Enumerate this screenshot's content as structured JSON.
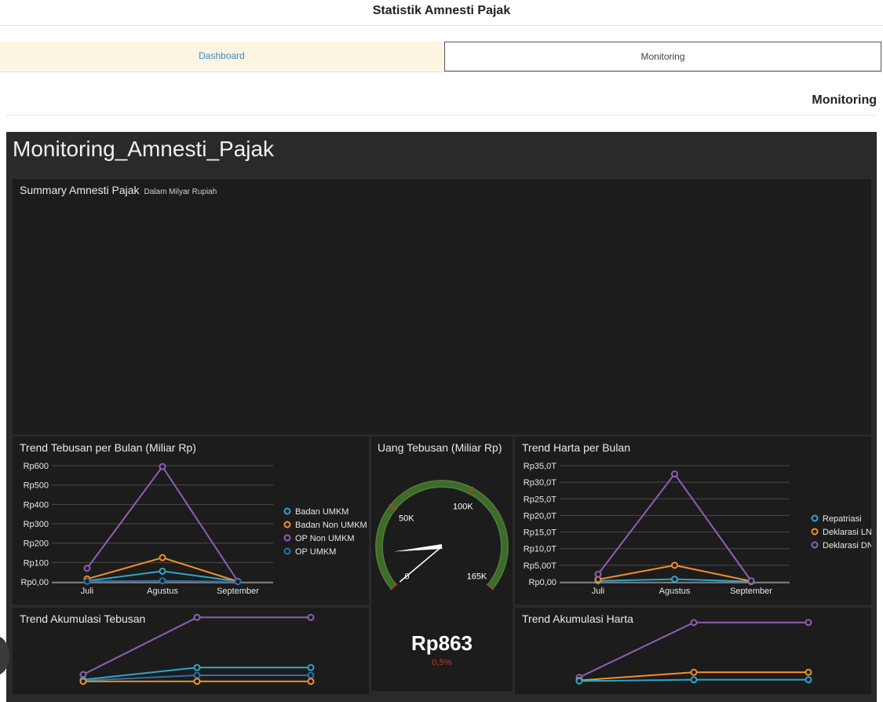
{
  "app": {
    "title": "Statistik Amnesti Pajak"
  },
  "tabs": [
    {
      "label": "Dashboard"
    },
    {
      "label": "Monitoring"
    }
  ],
  "section": {
    "title": "Monitoring"
  },
  "dashboard": {
    "title": "Monitoring_Amnesti_Pajak",
    "summary": {
      "title": "Summary Amnesti Pajak",
      "subtitle": "Dalam Milyar Rupiah"
    },
    "gauge": {
      "title": "Uang Tebusan (Miliar Rp)",
      "value_text": "Rp863",
      "pct_text": "0,5%",
      "value": 863,
      "min": 0,
      "max": 165000,
      "tick_labels": [
        "0",
        "50K",
        "100K",
        "165K"
      ],
      "tick_values": [
        0,
        50000,
        100000,
        165000
      ]
    },
    "colors": {
      "teal": "#2fa5c9",
      "orange": "#f28e2b",
      "purple": "#8e5fb0",
      "blue": "#2c6fae"
    }
  },
  "chart_data": [
    {
      "id": "trend-tebusan",
      "type": "line",
      "title": "Trend Tebusan per Bulan (Miliar Rp)",
      "categories": [
        "Juli",
        "Agustus",
        "September"
      ],
      "ylim": [
        0,
        600
      ],
      "yticks": [
        "Rp0,00",
        "Rp100",
        "Rp200",
        "Rp300",
        "Rp400",
        "Rp500",
        "Rp600"
      ],
      "yticks_values": [
        0,
        100,
        200,
        300,
        400,
        500,
        600
      ],
      "grid": true,
      "legend": "right",
      "series": [
        {
          "name": "Badan UMKM",
          "color": "#2fa5c9",
          "values": [
            5,
            55,
            3
          ]
        },
        {
          "name": "Badan Non UMKM",
          "color": "#f28e2b",
          "values": [
            15,
            125,
            2
          ]
        },
        {
          "name": "OP Non UMKM",
          "color": "#8e5fb0",
          "values": [
            70,
            595,
            3
          ]
        },
        {
          "name": "OP UMKM",
          "color": "#2c6fae",
          "values": [
            3,
            5,
            1
          ]
        }
      ]
    },
    {
      "id": "trend-harta",
      "type": "line",
      "title": "Trend Harta per Bulan",
      "categories": [
        "Juli",
        "Agustus",
        "September"
      ],
      "ylim": [
        0,
        35
      ],
      "yticks": [
        "Rp0,00",
        "Rp5,00T",
        "Rp10,0T",
        "Rp15,0T",
        "Rp20,0T",
        "Rp25,0T",
        "Rp30,0T",
        "Rp35,0T"
      ],
      "yticks_values": [
        0,
        5,
        10,
        15,
        20,
        25,
        30,
        35
      ],
      "grid": true,
      "legend": "right",
      "series": [
        {
          "name": "Repatriasi",
          "color": "#2fa5c9",
          "values": [
            0.3,
            0.8,
            0.1
          ]
        },
        {
          "name": "Deklarasi LN",
          "color": "#f28e2b",
          "values": [
            0.7,
            5,
            0.2
          ]
        },
        {
          "name": "Deklarasi DN",
          "color": "#8e5fb0",
          "values": [
            2.3,
            32.5,
            0.3
          ]
        }
      ]
    },
    {
      "id": "akum-tebusan",
      "type": "line",
      "title": "Trend Akumulasi Tebusan",
      "categories": [
        "Juli",
        "Agustus",
        "September"
      ],
      "ylim": [
        0,
        700
      ],
      "grid": false,
      "legend": "none",
      "series": [
        {
          "color": "#8e5fb0",
          "values": [
            73,
            665,
            665
          ]
        },
        {
          "color": "#2fa5c9",
          "values": [
            20,
            145,
            145
          ]
        },
        {
          "color": "#2c6fae",
          "values": [
            10,
            65,
            65
          ]
        },
        {
          "color": "#f28e2b",
          "values": [
            2,
            2,
            2
          ]
        }
      ]
    },
    {
      "id": "akum-harta",
      "type": "line",
      "title": "Trend Akumulasi Harta",
      "categories": [
        "Juli",
        "Agustus",
        "September"
      ],
      "ylim": [
        0,
        40
      ],
      "grid": false,
      "legend": "none",
      "series": [
        {
          "color": "#8e5fb0",
          "values": [
            2.5,
            35,
            35
          ]
        },
        {
          "color": "#f28e2b",
          "values": [
            0.7,
            5.5,
            5.5
          ]
        },
        {
          "color": "#2fa5c9",
          "values": [
            0.3,
            1.1,
            1.1
          ]
        }
      ]
    }
  ]
}
